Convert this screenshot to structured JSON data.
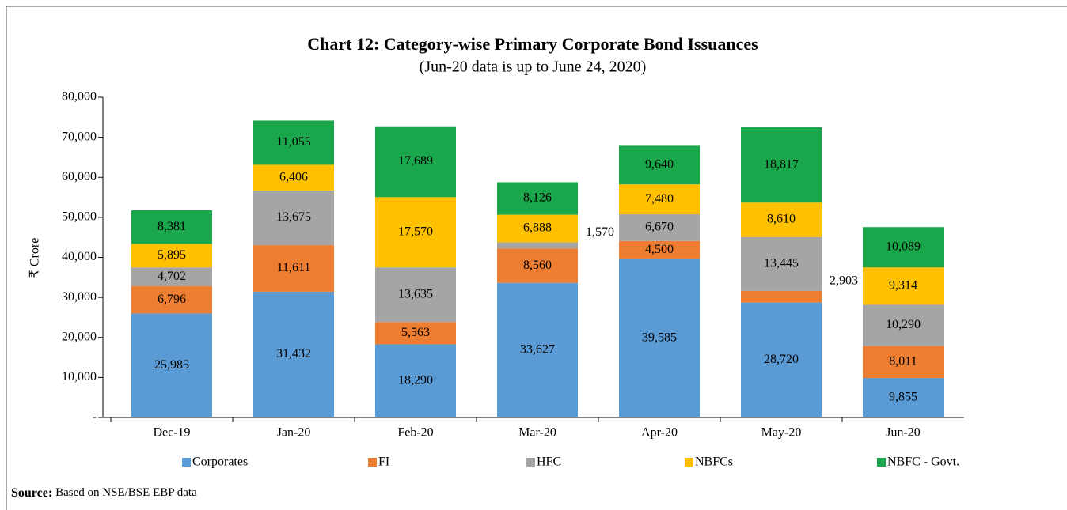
{
  "chart_data": {
    "type": "stacked_bar",
    "title": "Chart 12: Category-wise Primary Corporate Bond Issuances",
    "subtitle": "(Jun-20 data is up to June 24, 2020)",
    "y_label": "₹ Crore",
    "categories": [
      "Dec-19",
      "Jan-20",
      "Feb-20",
      "Mar-20",
      "Apr-20",
      "May-20",
      "Jun-20"
    ],
    "series": [
      {
        "name": "Corporates",
        "color": "#5b9bd5",
        "values": [
          25985,
          31432,
          18290,
          33627,
          39585,
          28720,
          9855
        ],
        "value_labels": [
          "25,985",
          "31,432",
          "18,290",
          "33,627",
          "39,585",
          "28,720",
          "9,855"
        ]
      },
      {
        "name": "FI",
        "color": "#ed7d31",
        "values": [
          6796,
          11611,
          5563,
          8560,
          4500,
          2903,
          8011
        ],
        "value_labels": [
          "6,796",
          "11,611",
          "5,563",
          "8,560",
          "4,500",
          "2,903",
          "8,011"
        ]
      },
      {
        "name": "HFC",
        "color": "#a5a5a5",
        "values": [
          4702,
          13675,
          13635,
          1570,
          6670,
          13445,
          10290
        ],
        "value_labels": [
          "4,702",
          "13,675",
          "13,635",
          "1,570",
          "6,670",
          "13,445",
          "10,290"
        ]
      },
      {
        "name": "NBFCs",
        "color": "#ffc000",
        "values": [
          5895,
          6406,
          17570,
          6888,
          7480,
          8610,
          9314
        ],
        "value_labels": [
          "5,895",
          "6,406",
          "17,570",
          "6,888",
          "7,480",
          "8,610",
          "9,314"
        ]
      },
      {
        "name": "NBFC - Govt.",
        "color": "#1aa64a",
        "values": [
          8381,
          11055,
          17689,
          8126,
          9640,
          18817,
          10089
        ],
        "value_labels": [
          "8,381",
          "11,055",
          "17,689",
          "8,126",
          "9,640",
          "18,817",
          "10,089"
        ]
      }
    ],
    "ylim": [
      0,
      80000
    ],
    "yticks": [
      {
        "value": 0,
        "label": "-"
      },
      {
        "value": 10000,
        "label": "10,000"
      },
      {
        "value": 20000,
        "label": "20,000"
      },
      {
        "value": 30000,
        "label": "30,000"
      },
      {
        "value": 40000,
        "label": "40,000"
      },
      {
        "value": 50000,
        "label": "50,000"
      },
      {
        "value": 60000,
        "label": "60,000"
      },
      {
        "value": 70000,
        "label": "70,000"
      },
      {
        "value": 80000,
        "label": "80,000"
      }
    ],
    "grid": false,
    "legend": "bottom",
    "source": {
      "label": "Source:",
      "text": "Based on NSE/BSE EBP data"
    }
  }
}
